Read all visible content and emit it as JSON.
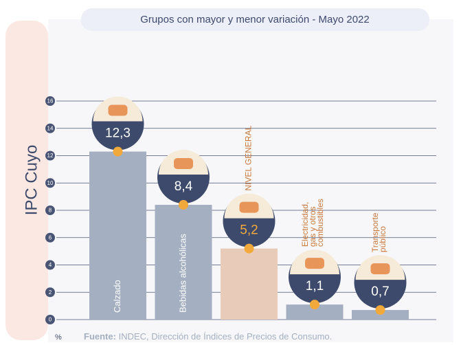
{
  "chart_data": {
    "type": "bar",
    "title": "Grupos con mayor y menor variación - Mayo 2022",
    "side_label": "IPC Cuyo",
    "unit": "%",
    "source_label": "Fuente:",
    "source": "INDEC, Dirección de Índices de Precios de Consumo.",
    "categories": [
      "Calzado",
      "Bebidas alcohólicas",
      "NIVEL GENERAL",
      "Electricidad, gas y otros combustibles",
      "Transporte público"
    ],
    "values": [
      12.3,
      8.4,
      5.2,
      1.1,
      0.7
    ],
    "value_labels": [
      "12,3",
      "8,4",
      "5,2",
      "1,1",
      "0,7"
    ],
    "colors": [
      "#a4afc1",
      "#a4afc1",
      "#e9cbb9",
      "#a4afc1",
      "#a4afc1"
    ],
    "value_label_colors": [
      "#ffffff",
      "#ffffff",
      "#f2a93b",
      "#ffffff",
      "#ffffff"
    ],
    "ylim": [
      0,
      16
    ],
    "yticks": [
      0,
      2,
      4,
      6,
      8,
      10,
      12,
      14,
      16
    ],
    "grid": true
  }
}
